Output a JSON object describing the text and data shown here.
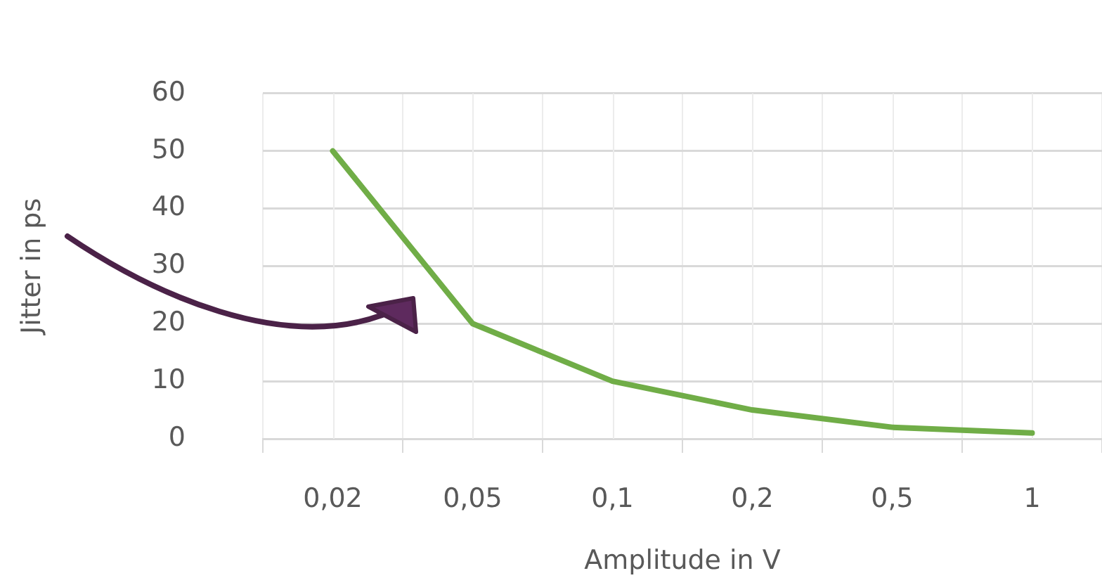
{
  "chart_data": {
    "type": "line",
    "xlabel": "Amplitude in V",
    "ylabel": "Jitter in ps",
    "categories": [
      "0,02",
      "0,05",
      "0,1",
      "0,2",
      "0,5",
      "1"
    ],
    "series": [
      {
        "color": "#70ad47",
        "values": [
          50,
          20,
          10,
          5,
          2,
          1
        ]
      }
    ],
    "ylim": [
      0,
      60
    ],
    "yticks": [
      0,
      10,
      20,
      30,
      40,
      50,
      60
    ],
    "grid": true,
    "legend": false,
    "marker": "none",
    "line_style": "solid"
  }
}
